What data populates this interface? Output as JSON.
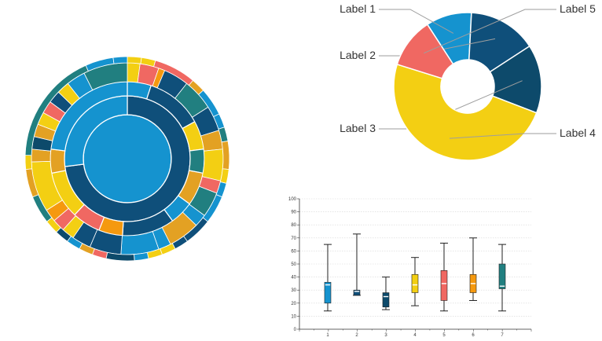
{
  "colors": {
    "blue": "#1593cf",
    "navy": "#0f4f7a",
    "darknavy": "#0d4a6b",
    "teal": "#217f80",
    "yellow": "#f3cf13",
    "orange": "#e3a123",
    "coral": "#f06862",
    "darkorange": "#f5990f",
    "axis": "#333333",
    "grid": "#d6d6d6",
    "leader": "#9e9e9e"
  },
  "chart_data": [
    {
      "type": "sunburst",
      "title": "",
      "rings": [
        {
          "level": 0,
          "segments": [
            {
              "value": 100,
              "color": "blue"
            }
          ]
        },
        {
          "level": 1,
          "segments": [
            {
              "value": 73,
              "color": "navy"
            },
            {
              "value": 27,
              "color": "blue"
            }
          ]
        },
        {
          "level": 2,
          "segments": [
            {
              "value": 5,
              "color": "blue"
            },
            {
              "value": 12,
              "color": "navy"
            },
            {
              "value": 6,
              "color": "yellow"
            },
            {
              "value": 5,
              "color": "teal"
            },
            {
              "value": 7,
              "color": "orange"
            },
            {
              "value": 5,
              "color": "blue"
            },
            {
              "value": 11,
              "color": "navy"
            },
            {
              "value": 5,
              "color": "darkorange"
            },
            {
              "value": 6,
              "color": "coral"
            },
            {
              "value": 10,
              "color": "yellow"
            },
            {
              "value": 5,
              "color": "orange"
            },
            {
              "value": 23,
              "color": "blue"
            }
          ]
        },
        {
          "level": 3,
          "segments": [
            {
              "value": 2,
              "color": "yellow"
            },
            {
              "value": 3,
              "color": "coral"
            },
            {
              "value": 1,
              "color": "darkorange"
            },
            {
              "value": 4,
              "color": "navy"
            },
            {
              "value": 5,
              "color": "teal"
            },
            {
              "value": 4,
              "color": "navy"
            },
            {
              "value": 3,
              "color": "orange"
            },
            {
              "value": 5,
              "color": "yellow"
            },
            {
              "value": 2,
              "color": "coral"
            },
            {
              "value": 4,
              "color": "teal"
            },
            {
              "value": 2,
              "color": "blue"
            },
            {
              "value": 5,
              "color": "orange"
            },
            {
              "value": 2,
              "color": "blue"
            },
            {
              "value": 6,
              "color": "blue"
            },
            {
              "value": 5,
              "color": "navy"
            },
            {
              "value": 3,
              "color": "navy"
            },
            {
              "value": 2,
              "color": "yellow"
            },
            {
              "value": 2,
              "color": "coral"
            },
            {
              "value": 2,
              "color": "darkorange"
            },
            {
              "value": 8,
              "color": "yellow"
            },
            {
              "value": 2,
              "color": "orange"
            },
            {
              "value": 2,
              "color": "darknavy"
            },
            {
              "value": 2,
              "color": "orange"
            },
            {
              "value": 2,
              "color": "yellow"
            },
            {
              "value": 2,
              "color": "coral"
            },
            {
              "value": 2,
              "color": "navy"
            },
            {
              "value": 2,
              "color": "yellow"
            },
            {
              "value": 3,
              "color": "blue"
            },
            {
              "value": 7,
              "color": "teal"
            }
          ]
        },
        {
          "level": 4,
          "segments": [
            {
              "value": 1,
              "color": "yellow"
            },
            {
              "value": 1,
              "color": "yellow"
            },
            {
              "value": 3,
              "color": "coral"
            },
            {
              "value": 1,
              "color": "orange"
            },
            {
              "value": 2,
              "color": "blue"
            },
            {
              "value": 1,
              "color": "blue"
            },
            {
              "value": 1,
              "color": "teal"
            },
            {
              "value": 2,
              "color": "orange"
            },
            {
              "value": 1,
              "color": "yellow"
            },
            {
              "value": 1,
              "color": "blue"
            },
            {
              "value": 2,
              "color": "blue"
            },
            {
              "value": 2,
              "color": "navy"
            },
            {
              "value": 1,
              "color": "navy"
            },
            {
              "value": 1,
              "color": "yellow"
            },
            {
              "value": 1,
              "color": "yellow"
            },
            {
              "value": 1,
              "color": "blue"
            },
            {
              "value": 2,
              "color": "darknavy"
            },
            {
              "value": 1,
              "color": "coral"
            },
            {
              "value": 1,
              "color": "orange"
            },
            {
              "value": 1,
              "color": "blue"
            },
            {
              "value": 1,
              "color": "darknavy"
            },
            {
              "value": 1,
              "color": "yellow"
            },
            {
              "value": 2,
              "color": "teal"
            },
            {
              "value": 2,
              "color": "orange"
            },
            {
              "value": 1,
              "color": "yellow"
            },
            {
              "value": 8,
              "color": "teal"
            },
            {
              "value": 2,
              "color": "blue"
            },
            {
              "value": 1,
              "color": "blue"
            }
          ]
        }
      ]
    },
    {
      "type": "pie",
      "title": "",
      "labels": [
        "Label 1",
        "Label 2",
        "Label 3",
        "Label 4",
        "Label 5"
      ],
      "values": [
        10,
        15,
        15,
        49,
        11
      ],
      "colors": [
        "blue",
        "navy",
        "darknavy",
        "yellow",
        "coral"
      ],
      "label_positions": [
        "top-left",
        "left",
        "left",
        "right",
        "top-right"
      ]
    },
    {
      "type": "box",
      "title": "",
      "xlabel": "",
      "ylabel": "",
      "ylim": [
        0,
        100
      ],
      "yticks": [
        0,
        10,
        20,
        30,
        40,
        50,
        60,
        70,
        80,
        90,
        100
      ],
      "grid": true,
      "categories": [
        "1",
        "2",
        "3",
        "4",
        "5",
        "6",
        "7"
      ],
      "boxes": [
        {
          "min": 14,
          "q1": 20,
          "median": 34,
          "q3": 36,
          "max": 65,
          "color": "blue"
        },
        {
          "min": 26,
          "q1": 26,
          "median": 29,
          "q3": 30,
          "max": 73,
          "color": "navy"
        },
        {
          "min": 15,
          "q1": 17,
          "median": 25,
          "q3": 28,
          "max": 40,
          "color": "darknavy"
        },
        {
          "min": 18,
          "q1": 28,
          "median": 34,
          "q3": 42,
          "max": 55,
          "color": "yellow"
        },
        {
          "min": 14,
          "q1": 22,
          "median": 35,
          "q3": 45,
          "max": 66,
          "color": "coral"
        },
        {
          "min": 22,
          "q1": 28,
          "median": 35,
          "q3": 42,
          "max": 70,
          "color": "darkorange"
        },
        {
          "min": 14,
          "q1": 31,
          "median": 33,
          "q3": 50,
          "max": 65,
          "color": "teal"
        }
      ]
    }
  ]
}
